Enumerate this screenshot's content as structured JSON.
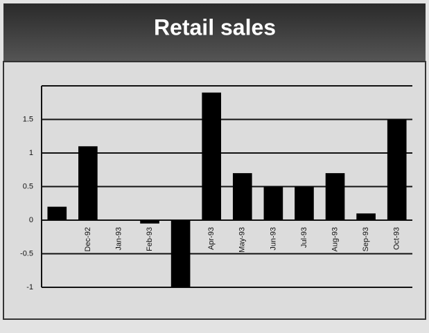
{
  "chart_data": {
    "type": "bar",
    "title": "Retail sales",
    "categories": [
      null,
      "Dec-92",
      "Jan-93",
      "Feb-93",
      null,
      "Apr-93",
      "May-93",
      "Jun-93",
      "Jul-93",
      "Aug-93",
      "Sep-93",
      "Oct-93"
    ],
    "values": [
      0.2,
      1.1,
      0,
      -0.05,
      -1.0,
      1.9,
      0.7,
      0.5,
      0.5,
      0.7,
      0.1,
      1.5
    ],
    "color": "#000000",
    "ylim": [
      -1,
      2
    ],
    "yticks": [
      -1,
      -0.5,
      0,
      0.5,
      1,
      1.5
    ],
    "grid": true
  }
}
